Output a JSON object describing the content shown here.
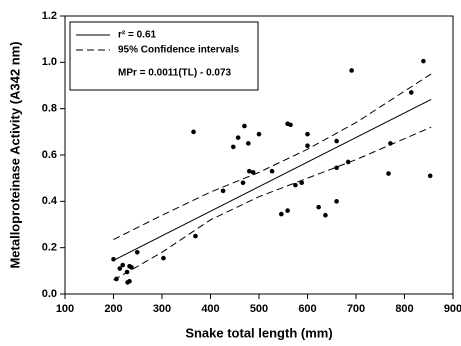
{
  "chart_data": {
    "type": "scatter",
    "x_label": "Snake total length (mm)",
    "y_label": "Metalloproteinase Activity (A342 nm)",
    "xlim": [
      100,
      900
    ],
    "xticks": [
      100,
      200,
      300,
      400,
      500,
      600,
      700,
      800,
      900
    ],
    "ylim": [
      0,
      1.2
    ],
    "yticks": [
      {
        "value": 0,
        "label": "0.0"
      },
      0.2,
      0.4,
      0.6,
      0.8,
      {
        "value": 1,
        "label": "1.0"
      },
      1.2
    ],
    "points": {
      "color": "#000000",
      "x": [
        200,
        206,
        213,
        219,
        228,
        229,
        233,
        233,
        237,
        249,
        303,
        369,
        365,
        426,
        447,
        457,
        467,
        470,
        478,
        480,
        488,
        500,
        527,
        546,
        559,
        565,
        559,
        575,
        588,
        600,
        600,
        623,
        637,
        660,
        660,
        660,
        684,
        691,
        767,
        771,
        814,
        839,
        853
      ],
      "y": [
        0.15,
        0.065,
        0.11,
        0.125,
        0.095,
        0.05,
        0.055,
        0.12,
        0.115,
        0.18,
        0.155,
        0.25,
        0.7,
        0.445,
        0.635,
        0.675,
        0.48,
        0.725,
        0.65,
        0.53,
        0.525,
        0.69,
        0.53,
        0.345,
        0.735,
        0.73,
        0.36,
        0.47,
        0.48,
        0.64,
        0.69,
        0.375,
        0.34,
        0.4,
        0.545,
        0.66,
        0.57,
        0.965,
        0.52,
        0.65,
        0.87,
        1.005,
        0.51
      ]
    },
    "regression": {
      "name": "r² = 0.61",
      "color": "#000000",
      "x": [
        200,
        855
      ],
      "y": [
        0.145,
        0.84
      ]
    },
    "confidence_band": {
      "name": "95% Confidence intervals",
      "color": "#000000",
      "upper": {
        "x": [
          200,
          300,
          400,
          500,
          600,
          700,
          855
        ],
        "y": [
          0.235,
          0.34,
          0.44,
          0.525,
          0.625,
          0.74,
          0.95
        ]
      },
      "lower": {
        "x": [
          200,
          300,
          400,
          500,
          600,
          700,
          855
        ],
        "y": [
          0.06,
          0.18,
          0.32,
          0.42,
          0.5,
          0.58,
          0.72
        ]
      }
    },
    "equation": "MPr = 0.0011(TL) - 0.073"
  }
}
